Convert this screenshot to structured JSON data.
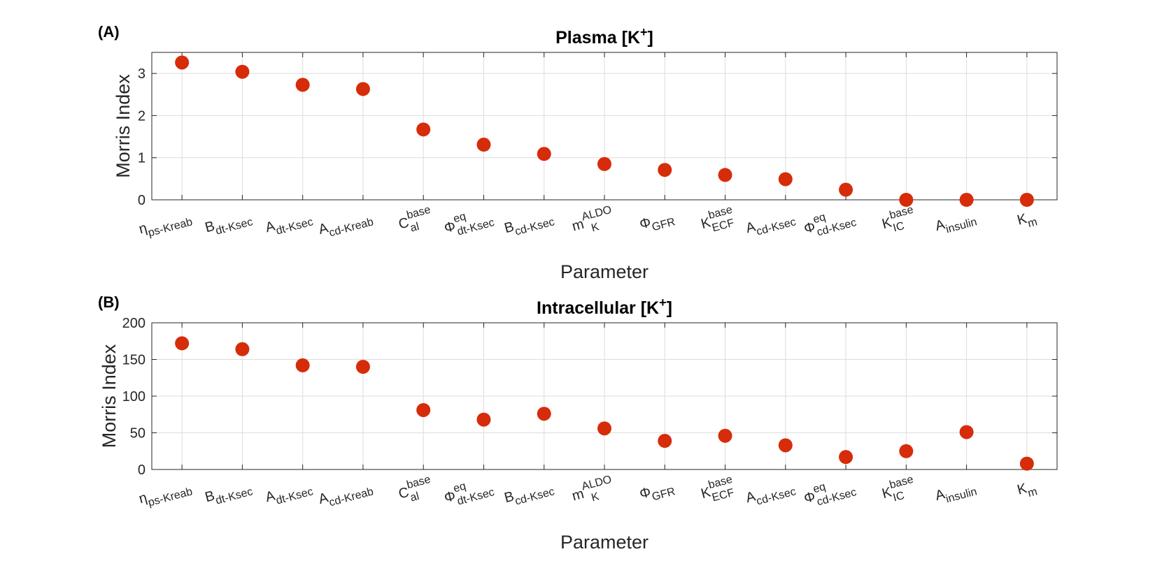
{
  "colors": {
    "marker": "#d62c0a",
    "axis": "#262626",
    "grid": "#dcdcdc",
    "background": "#ffffff"
  },
  "chart_data": [
    {
      "type": "scatter",
      "panel_label": "(A)",
      "title": "Plasma [K",
      "title_sup": "+",
      "title_end": "]",
      "xlabel": "Parameter",
      "ylabel": "Morris Index",
      "ylim": [
        0,
        3.5
      ],
      "yticks": [
        0,
        1,
        2,
        3
      ],
      "grid": true,
      "categories": [
        {
          "main": "η",
          "sub": "ps-Kreab"
        },
        {
          "main": "B",
          "sub": "dt-Ksec"
        },
        {
          "main": "A",
          "sub": "dt-Ksec"
        },
        {
          "main": "A",
          "sub": "cd-Kreab"
        },
        {
          "main": "C",
          "sup": "base",
          "sub": "al"
        },
        {
          "main": "Φ",
          "sup": "eq",
          "sub": "dt-Ksec"
        },
        {
          "main": "B",
          "sub": "cd-Ksec"
        },
        {
          "main": "m",
          "sup": "ALDO",
          "sub": "K"
        },
        {
          "main": "Φ",
          "sub": "GFR"
        },
        {
          "main": "K",
          "sup": "base",
          "sub": "ECF"
        },
        {
          "main": "A",
          "sub": "cd-Ksec"
        },
        {
          "main": "Φ",
          "sup": "eq",
          "sub": "cd-Ksec"
        },
        {
          "main": "K",
          "sup": "base",
          "sub": "IC"
        },
        {
          "main": "A",
          "sub": "insulin"
        },
        {
          "main": "K",
          "sub": "m"
        }
      ],
      "values": [
        3.26,
        3.04,
        2.73,
        2.63,
        1.67,
        1.31,
        1.09,
        0.85,
        0.71,
        0.59,
        0.49,
        0.24,
        0.0,
        0.0,
        0.0
      ]
    },
    {
      "type": "scatter",
      "panel_label": "(B)",
      "title": "Intracellular [K",
      "title_sup": "+",
      "title_end": "]",
      "xlabel": "Parameter",
      "ylabel": "Morris Index",
      "ylim": [
        0,
        200
      ],
      "yticks": [
        0,
        50,
        100,
        150,
        200
      ],
      "grid": true,
      "categories": [
        {
          "main": "η",
          "sub": "ps-Kreab"
        },
        {
          "main": "B",
          "sub": "dt-Ksec"
        },
        {
          "main": "A",
          "sub": "dt-Ksec"
        },
        {
          "main": "A",
          "sub": "cd-Kreab"
        },
        {
          "main": "C",
          "sup": "base",
          "sub": "al"
        },
        {
          "main": "Φ",
          "sup": "eq",
          "sub": "dt-Ksec"
        },
        {
          "main": "B",
          "sub": "cd-Ksec"
        },
        {
          "main": "m",
          "sup": "ALDO",
          "sub": "K"
        },
        {
          "main": "Φ",
          "sub": "GFR"
        },
        {
          "main": "K",
          "sup": "base",
          "sub": "ECF"
        },
        {
          "main": "A",
          "sub": "cd-Ksec"
        },
        {
          "main": "Φ",
          "sup": "eq",
          "sub": "cd-Ksec"
        },
        {
          "main": "K",
          "sup": "base",
          "sub": "IC"
        },
        {
          "main": "A",
          "sub": "insulin"
        },
        {
          "main": "K",
          "sub": "m"
        }
      ],
      "values": [
        172,
        164,
        142,
        140,
        81,
        68,
        76,
        56,
        39,
        46,
        33,
        17,
        25,
        51,
        8
      ]
    }
  ]
}
